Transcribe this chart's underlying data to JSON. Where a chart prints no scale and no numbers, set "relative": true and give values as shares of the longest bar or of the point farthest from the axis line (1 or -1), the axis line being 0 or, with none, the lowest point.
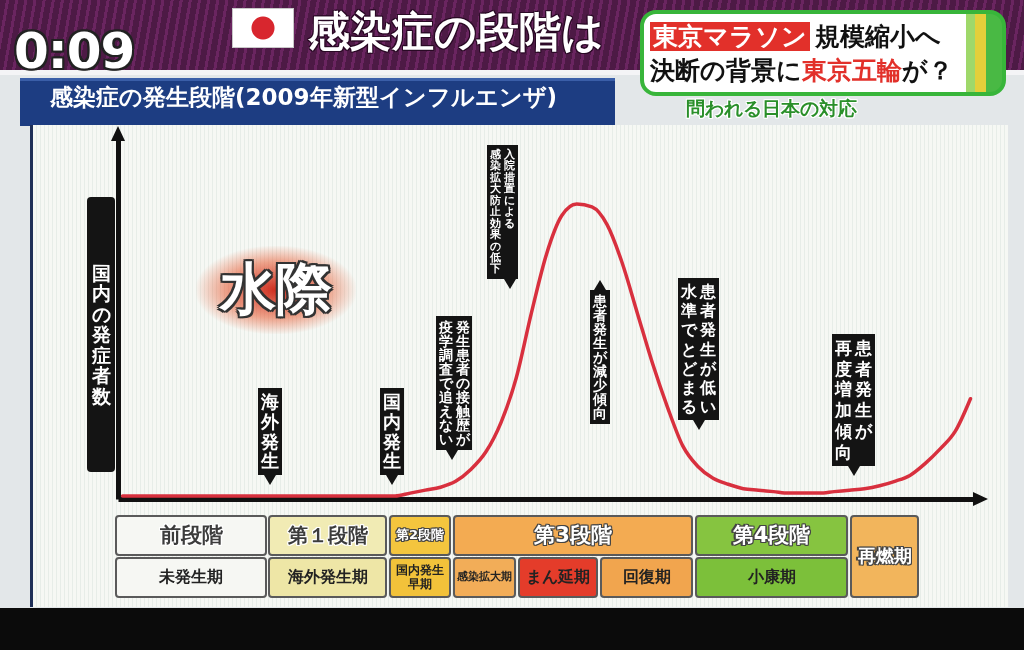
{
  "chart_data": {
    "type": "line",
    "title": "感染症の発生段階(2009年新型インフルエンザ)",
    "ylabel": "国内の発症者数",
    "relative": true,
    "categories": [
      null,
      null,
      null,
      null,
      null,
      null,
      null,
      null,
      null,
      null,
      null,
      null,
      null,
      null,
      null,
      null,
      null,
      null,
      null,
      null,
      null,
      null,
      null,
      null,
      null,
      null,
      null,
      null,
      null,
      null,
      null,
      null,
      null,
      null,
      null,
      null,
      null,
      null,
      null,
      null,
      null,
      null,
      null,
      null,
      null,
      null,
      null,
      null,
      null,
      null,
      null,
      null,
      null,
      null,
      null,
      null,
      null
    ],
    "values": [
      0.01,
      0.01,
      0.01,
      0.01,
      0.01,
      0.01,
      0.01,
      0.01,
      0.01,
      0.01,
      0.01,
      0.01,
      0.01,
      0.01,
      0.01,
      0.01,
      0.01,
      0.01,
      0.01,
      0.02,
      0.03,
      0.04,
      0.06,
      0.1,
      0.16,
      0.26,
      0.41,
      0.63,
      0.83,
      0.96,
      1,
      0.99,
      0.93,
      0.8,
      0.63,
      0.46,
      0.31,
      0.18,
      0.11,
      0.07,
      0.05,
      0.035,
      0.03,
      0.025,
      0.02,
      0.02,
      0.02,
      0.025,
      0.03,
      0.035,
      0.045,
      0.06,
      0.08,
      0.12,
      0.17,
      0.23,
      0.34
    ],
    "color": "#d8303e",
    "annotations": [
      "0:09",
      "感染症の段階は",
      "東京マラソン",
      "規模縮小へ",
      "決断の背景に",
      "東京五輪",
      "が？",
      "問われる日本の対応",
      "水際",
      "海外発生",
      "国内発生",
      "発生患者の接触歴が",
      "疫学調査で追えない",
      "入院措置による",
      "感染拡大防止効果の低下",
      "患者発生が減少傾向",
      "患者発生が低い",
      "水準でとどまる",
      "患者発生が",
      "再度増加傾向",
      "前段階",
      "未発生期",
      "第１段階",
      "海外発生期",
      "第2段階",
      "国内発生早期",
      "第3段階",
      "感染拡大期",
      "まん延期",
      "回復期",
      "第4段階",
      "小康期",
      "再燃期"
    ]
  }
}
